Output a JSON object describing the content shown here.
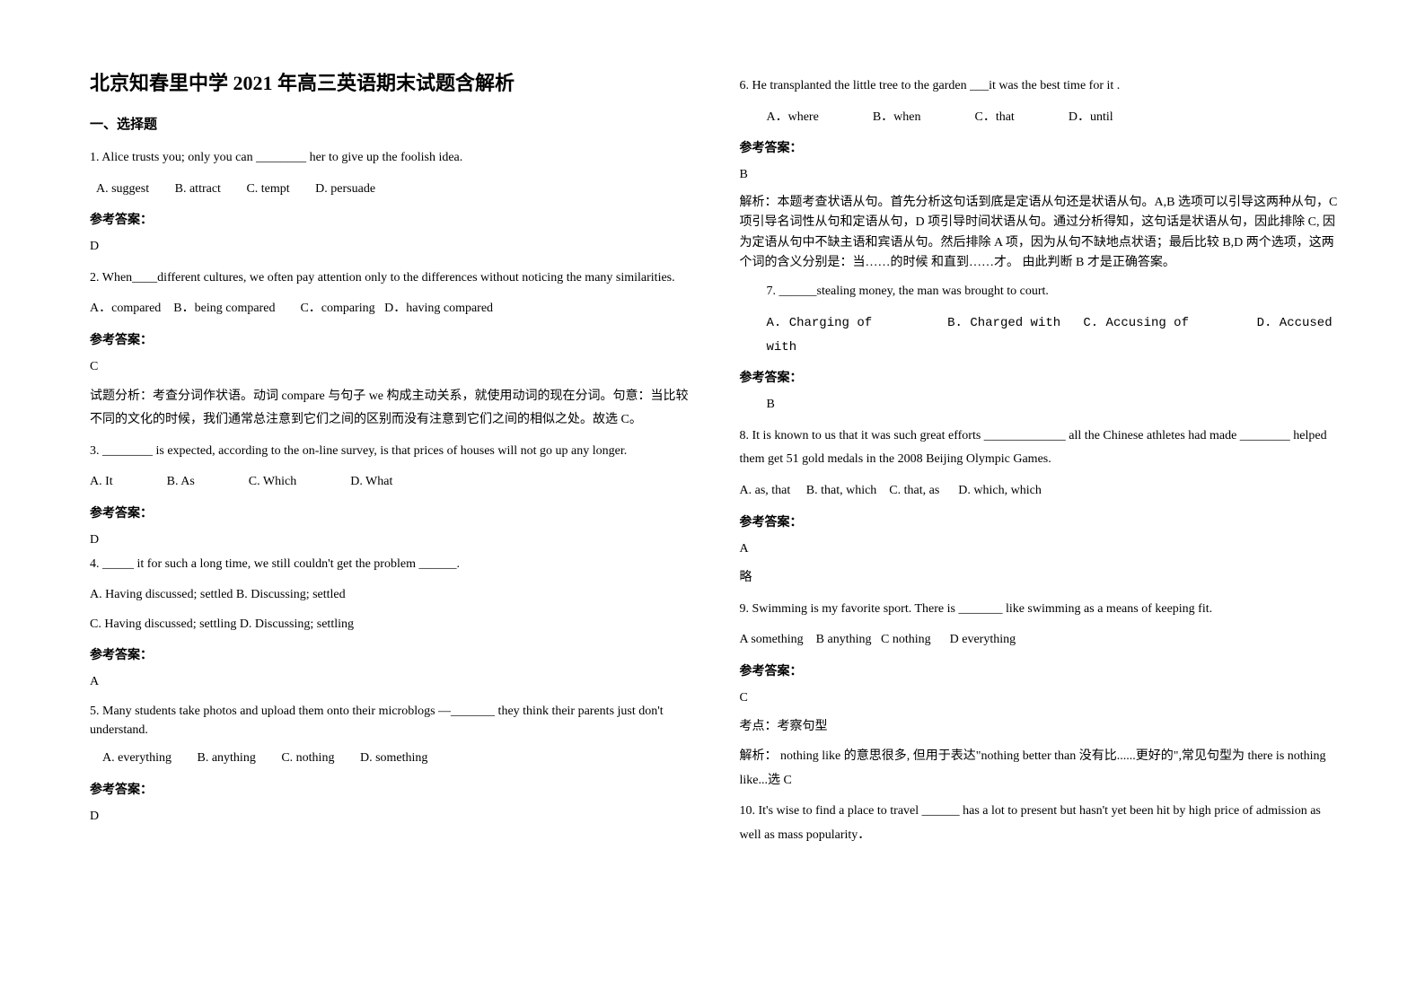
{
  "title": "北京知春里中学 2021 年高三英语期末试题含解析",
  "section1_header": "一、选择题",
  "q1": {
    "text": "1. Alice trusts you; only you can ________ her to give up the foolish idea.",
    "opts": {
      "a": "A. suggest",
      "b": "B. attract",
      "c": "C. tempt",
      "d": "D. persuade"
    },
    "ans_header": "参考答案：",
    "ans": "D"
  },
  "q2": {
    "text": "2. When____different cultures, we often pay attention only to the differences without noticing the many similarities.",
    "opts_line": "A．compared    B．being compared        C．comparing   D．having compared",
    "ans_header": "参考答案：",
    "ans": "C",
    "exp": "试题分析：考查分词作状语。动词 compare 与句子 we 构成主动关系，就使用动词的现在分词。句意：当比较不同的文化的时候，我们通常总注意到它们之间的区别而没有注意到它们之间的相似之处。故选 C。"
  },
  "q3": {
    "text": "3. ________ is expected, according to the on-line survey, is that prices of houses will not go up any longer.",
    "opts": {
      "a": "A. It",
      "b": "B. As",
      "c": "C. Which",
      "d": "D. What"
    },
    "ans_header": "参考答案：",
    "ans": "D"
  },
  "q4": {
    "text": "4. _____ it for such a long time, we still couldn't get the problem ______.",
    "opts_l1": "A. Having discussed; settled     B. Discussing; settled",
    "opts_l2": "C. Having discussed; settling    D. Discussing; settling",
    "ans_header": "参考答案：",
    "ans": "A"
  },
  "q5": {
    "text": "5. Many students take photos and upload them onto their microblogs —_______ they think their parents just don't understand.",
    "opts": {
      "a": "A. everything",
      "b": "B. anything",
      "c": "C. nothing",
      "d": "D. something"
    },
    "ans_header": "参考答案：",
    "ans": "D"
  },
  "q6": {
    "text": "6. He transplanted the little tree to the garden ___it was the best time for it .",
    "opts": {
      "a": "A．where",
      "b": "B．when",
      "c": "C．that",
      "d": "D．until"
    },
    "ans_header": "参考答案：",
    "ans": "B",
    "exp": "解析：本题考查状语从句。首先分析这句话到底是定语从句还是状语从句。A,B 选项可以引导这两种从句，C 项引导名词性从句和定语从句，D 项引导时间状语从句。通过分析得知，这句话是状语从句，因此排除 C, 因为定语从句中不缺主语和宾语从句。然后排除 A 项，因为从句不缺地点状语；最后比较 B,D 两个选项，这两个词的含义分别是：当……的时候 和直到……才。 由此判断 B 才是正确答案。"
  },
  "q7": {
    "text": "7. ______stealing money, the man was brought to court.",
    "opts_line": "A. Charging of          B. Charged with   C. Accusing of         D. Accused with",
    "ans_header": "参考答案：",
    "ans": "B"
  },
  "q8": {
    "text": "8. It is known to us that it was such great efforts _____________ all the Chinese athletes had made ________ helped them get 51 gold medals in the 2008 Beijing Olympic Games.",
    "opts_line": "A. as, that     B. that, which    C. that, as      D. which, which",
    "ans_header": "参考答案：",
    "ans": "A",
    "note": "略"
  },
  "q9": {
    "text": "9. Swimming is my favorite sport. There is _______ like swimming as a means of keeping fit.",
    "opts_line": "A something    B anything   C nothing      D everything",
    "ans_header": "参考答案：",
    "ans": "C",
    "note1": "考点：考察句型",
    "note2": "解析： nothing like 的意思很多, 但用于表达\"nothing better than 没有比......更好的\",常见句型为 there is nothing like...选 C"
  },
  "q10": {
    "text": "10. It's wise to find a place to travel ______ has a lot to present but hasn't yet been hit by high price of admission as well as mass popularity．"
  }
}
